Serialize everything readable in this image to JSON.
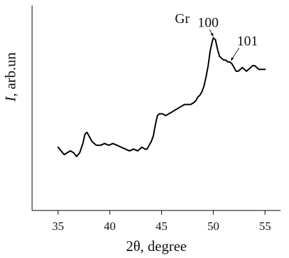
{
  "chart_data": {
    "type": "line",
    "xlabel": "2θ, degree",
    "ylabel": "I, arb.un",
    "ylabel_italic_part": "I",
    "ylabel_rest": ", arb.un",
    "xlim": [
      32.5,
      56.5
    ],
    "ylim": [
      0,
      100
    ],
    "x_ticks": [
      35,
      40,
      45,
      50,
      55
    ],
    "y_tick_labels_shown": false,
    "grid": false,
    "legend": "none",
    "line_color": "#000000",
    "series": [
      {
        "x": [
          35.0,
          35.3,
          35.6,
          35.9,
          36.2,
          36.5,
          36.8,
          37.1,
          37.4,
          37.6,
          37.8,
          38.0,
          38.3,
          38.7,
          39.1,
          39.5,
          39.9,
          40.3,
          40.7,
          41.1,
          41.5,
          41.9,
          42.3,
          42.7,
          43.1,
          43.4,
          43.6,
          43.8,
          44.0,
          44.2,
          44.4,
          44.6,
          44.8,
          45.1,
          45.4,
          45.7,
          46.0,
          46.3,
          46.6,
          46.9,
          47.2,
          47.5,
          47.8,
          48.1,
          48.3,
          48.5,
          48.7,
          48.9,
          49.1,
          49.3,
          49.5,
          49.7,
          49.9,
          50.0,
          50.2,
          50.4,
          50.6,
          50.8,
          51.0,
          51.2,
          51.4,
          51.6,
          51.8,
          52.0,
          52.2,
          52.4,
          52.6,
          52.8,
          53.0,
          53.2,
          53.4,
          53.6,
          53.8,
          54.0,
          54.2,
          54.4,
          54.7,
          55.0
        ],
        "y": [
          30,
          28,
          26,
          27,
          28,
          27,
          25,
          27,
          32,
          37,
          38,
          36,
          33,
          31,
          31,
          32,
          31,
          32,
          31,
          30,
          29,
          28,
          29,
          28,
          30,
          29,
          29,
          31,
          33,
          36,
          42,
          47,
          48,
          48,
          47,
          48,
          49,
          50,
          51,
          52,
          53,
          53,
          53,
          54,
          55,
          57,
          58,
          60,
          63,
          68,
          74,
          82,
          87,
          89,
          88,
          83,
          79,
          78,
          77,
          77,
          76,
          76,
          75,
          73,
          71,
          71,
          72,
          73,
          72,
          71,
          72,
          73,
          74,
          74,
          73,
          72,
          72,
          72
        ]
      }
    ],
    "annotations": [
      {
        "text": "Gr",
        "x": 47.0,
        "y": 97
      },
      {
        "text": "100",
        "x": 49.5,
        "y": 95,
        "arrow_to": [
          50.0,
          89
        ]
      },
      {
        "text": "101",
        "x": 53.3,
        "y": 85,
        "arrow_to": [
          51.7,
          76
        ]
      }
    ]
  }
}
